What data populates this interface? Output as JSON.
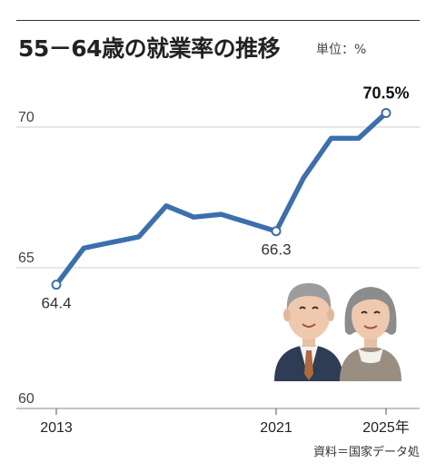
{
  "header": {
    "title": "55－64歳の就業率の推移",
    "unit": "単位：%"
  },
  "source": "資料＝国家データ処",
  "chart_data": {
    "type": "line",
    "title": "55－64歳の就業率の推移",
    "unit": "%",
    "x": [
      2013,
      2014,
      2015,
      2016,
      2017,
      2018,
      2019,
      2020,
      2021,
      2022,
      2023,
      2024,
      2025
    ],
    "x_tick_labels": [
      {
        "year": 2013,
        "label": "2013"
      },
      {
        "year": 2021,
        "label": "2021"
      },
      {
        "year": 2025,
        "label": "2025年"
      }
    ],
    "series": [
      {
        "values": [
          64.4,
          65.7,
          65.9,
          66.1,
          67.2,
          66.8,
          66.9,
          66.6,
          66.3,
          68.2,
          69.6,
          69.6,
          70.5
        ]
      }
    ],
    "annotations": [
      {
        "year": 2013,
        "label": "64.4",
        "marker": true
      },
      {
        "year": 2021,
        "label": "66.3",
        "marker": true
      },
      {
        "year": 2025,
        "label": "70.5%",
        "marker": true,
        "bold": true
      }
    ],
    "y_ticks": [
      60,
      65,
      70
    ],
    "ylim": [
      60,
      71
    ],
    "grid": true,
    "line_color": "#3b6fae",
    "gridline_color": "#cfcfcf",
    "decoration": "illustration of an older man and woman (bottom-right)"
  }
}
